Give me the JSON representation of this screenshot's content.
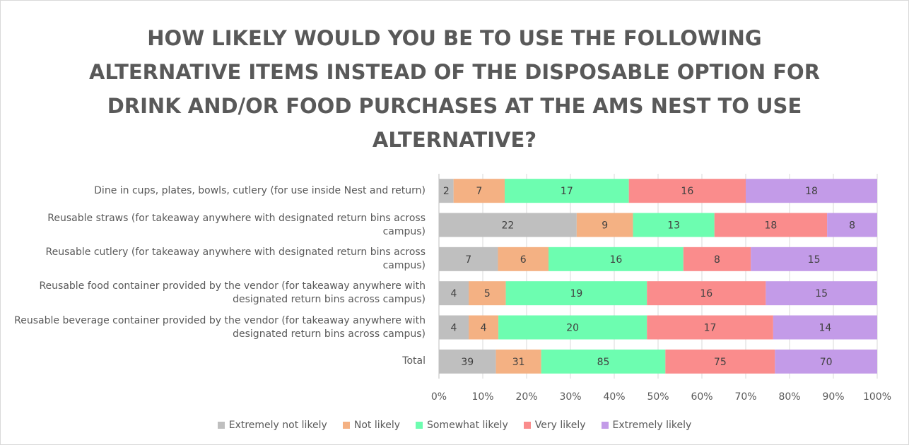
{
  "chart_data": {
    "type": "bar",
    "orientation": "horizontal",
    "stacking": "percent",
    "title": "HOW LIKELY WOULD YOU BE TO USE THE FOLLOWING ALTERNATIVE ITEMS INSTEAD OF THE DISPOSABLE OPTION FOR DRINK AND/OR FOOD PURCHASES AT THE AMS NEST TO USE ALTERNATIVE?",
    "categories": [
      "Dine in cups, plates, bowls, cutlery (for use inside Nest and return)",
      "Reusable straws (for takeaway anywhere with designated return bins across campus)",
      "Reusable cutlery (for takeaway anywhere with designated return bins across campus)",
      "Reusable food container provided by the vendor (for takeaway anywhere with designated return bins across campus)",
      "Reusable beverage container provided by the vendor (for takeaway anywhere with designated return bins across campus)",
      "Total"
    ],
    "series": [
      {
        "name": "Extremely not likely",
        "color": "#bfbfbf",
        "values": [
          2,
          22,
          7,
          4,
          4,
          39
        ]
      },
      {
        "name": "Not likely",
        "color": "#f4b183",
        "values": [
          7,
          9,
          6,
          5,
          4,
          31
        ]
      },
      {
        "name": "Somewhat likely",
        "color": "#6dfdb0",
        "values": [
          17,
          13,
          16,
          19,
          20,
          85
        ]
      },
      {
        "name": "Very likely",
        "color": "#fa8c8c",
        "values": [
          16,
          18,
          8,
          16,
          17,
          75
        ]
      },
      {
        "name": "Extremely likely",
        "color": "#c39be8",
        "values": [
          18,
          8,
          15,
          15,
          14,
          70
        ]
      }
    ],
    "xlim": [
      0,
      100
    ],
    "xticks": [
      {
        "value": 0,
        "label": "0%"
      },
      {
        "value": 10,
        "label": "10%"
      },
      {
        "value": 20,
        "label": "20%"
      },
      {
        "value": 30,
        "label": "30%"
      },
      {
        "value": 40,
        "label": "40%"
      },
      {
        "value": 50,
        "label": "50%"
      },
      {
        "value": 60,
        "label": "60%"
      },
      {
        "value": 70,
        "label": "70%"
      },
      {
        "value": 80,
        "label": "80%"
      },
      {
        "value": 90,
        "label": "90%"
      },
      {
        "value": 100,
        "label": "100%"
      }
    ],
    "grid": true,
    "legend": "bottom"
  }
}
